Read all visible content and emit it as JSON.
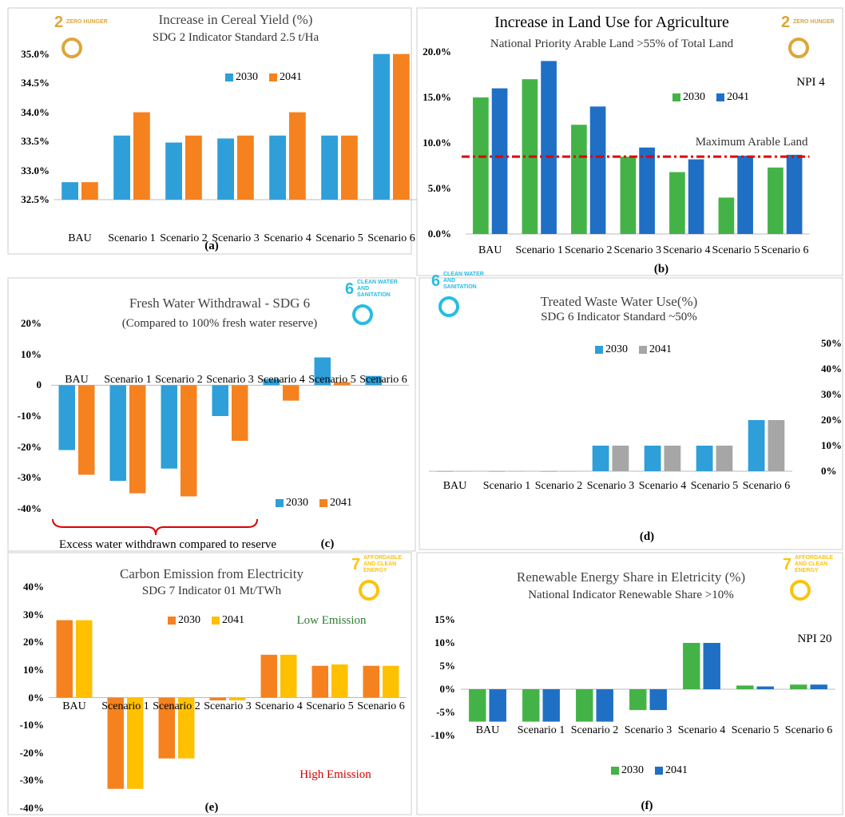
{
  "chart_data": [
    {
      "type": "bar",
      "title": "Increase in Cereal Yield (%)",
      "subtitle": "SDG 2 Indicator Standard 2.5 t/Ha",
      "panel_label": "(a)",
      "badge": {
        "number": "2",
        "text": "ZERO HUNGER",
        "color": "#dda63a"
      },
      "categories": [
        "BAU",
        "Scenario 1",
        "Scenario 2",
        "Scenario 3",
        "Scenario 4",
        "Scenario 5",
        "Scenario 6"
      ],
      "series": [
        {
          "name": "2030",
          "color": "#2e9fd8",
          "values": [
            32.8,
            33.6,
            33.48,
            33.55,
            33.6,
            33.6,
            35.0
          ]
        },
        {
          "name": "2041",
          "color": "#f5821f",
          "values": [
            32.8,
            34.0,
            33.6,
            33.6,
            34.0,
            33.6,
            35.0
          ]
        }
      ],
      "ylim": [
        32.5,
        35.2
      ],
      "yticks": [
        {
          "value": 32.5,
          "label": "32.5%"
        },
        {
          "value": 33,
          "label": "33.0%"
        },
        {
          "value": 33.5,
          "label": "33.5%"
        },
        {
          "value": 34,
          "label": "34.0%"
        },
        {
          "value": 34.5,
          "label": "34.5%"
        },
        {
          "value": 35,
          "label": "35.0%"
        }
      ]
    },
    {
      "type": "bar",
      "title": "Increase in Land Use for Agriculture",
      "subtitle": "National Priority Arable Land >55% of Total Land",
      "panel_label": "(b)",
      "badge": {
        "number": "2",
        "text": "ZERO HUNGER",
        "color": "#dda63a"
      },
      "annotations": [
        {
          "text": "NPI 4",
          "color": "#000"
        }
      ],
      "categories": [
        "BAU",
        "Scenario 1",
        "Scenario 2",
        "Scenario 3",
        "Scenario 4",
        "Scenario 5",
        "Scenario 6"
      ],
      "series": [
        {
          "name": "2030",
          "color": "#44b347",
          "values": [
            15,
            17,
            12,
            8.5,
            6.8,
            4.0,
            7.3
          ]
        },
        {
          "name": "2041",
          "color": "#1f6fc5",
          "values": [
            16,
            19,
            14,
            9.5,
            8.2,
            8.6,
            8.7
          ]
        }
      ],
      "ref_line": {
        "value": 8.5,
        "label": "Maximum Arable Land",
        "color": "#e00000"
      },
      "ylim": [
        0,
        20
      ],
      "yticks": [
        {
          "value": 0,
          "label": "0.0%"
        },
        {
          "value": 5,
          "label": "5.0%"
        },
        {
          "value": 10,
          "label": "10.0%"
        },
        {
          "value": 15,
          "label": "15.0%"
        },
        {
          "value": 20,
          "label": "20.0%"
        }
      ]
    },
    {
      "type": "bar",
      "title": "Fresh Water Withdrawal - SDG 6",
      "subtitle": "(Compared to 100% fresh water reserve)",
      "panel_label": "(c)",
      "badge": {
        "number": "6",
        "text": "CLEAN WATER AND SANITATION",
        "color": "#26bde2"
      },
      "annotations": [
        {
          "text": "Excess water withdrawn compared to reserve",
          "color": "#000"
        }
      ],
      "categories": [
        "BAU",
        "Scenario 1",
        "Scenario 2",
        "Scenario 3",
        "Scenario 4",
        "Scenario 5",
        "Scenario 6"
      ],
      "series": [
        {
          "name": "2030",
          "color": "#2e9fd8",
          "values": [
            -21,
            -31,
            -27,
            -10,
            2,
            9,
            3
          ]
        },
        {
          "name": "2041",
          "color": "#f5821f",
          "values": [
            -29,
            -35,
            -36,
            -18,
            -5,
            1,
            null
          ]
        }
      ],
      "ylim": [
        -40,
        20
      ],
      "yticks": [
        {
          "value": -40,
          "label": "-40%"
        },
        {
          "value": -30,
          "label": "-30%"
        },
        {
          "value": -20,
          "label": "-20%"
        },
        {
          "value": -10,
          "label": "-10%"
        },
        0,
        {
          "value": 10,
          "label": "10%"
        },
        {
          "value": 20,
          "label": "20%"
        }
      ]
    },
    {
      "type": "bar",
      "title": "Treated Waste Water Use(%)",
      "subtitle": "SDG 6 Indicator Standard ~50%",
      "panel_label": "(d)",
      "badge": {
        "number": "6",
        "text": "CLEAN WATER AND SANITATION",
        "color": "#26bde2"
      },
      "categories": [
        "BAU",
        "Scenario 1",
        "Scenario 2",
        "Scenario 3",
        "Scenario 4",
        "Scenario 5",
        "Scenario 6"
      ],
      "series": [
        {
          "name": "2030",
          "color": "#2e9fd8",
          "values": [
            0,
            0,
            0,
            10,
            10,
            10,
            20
          ]
        },
        {
          "name": "2041",
          "color": "#a6a6a6",
          "values": [
            0,
            0,
            0,
            10,
            10,
            10,
            20
          ]
        }
      ],
      "ylim": [
        0,
        50
      ],
      "yticks": [
        {
          "value": 0,
          "label": "0%"
        },
        {
          "value": 10,
          "label": "10%"
        },
        {
          "value": 20,
          "label": "20%"
        },
        {
          "value": 30,
          "label": "30%"
        },
        {
          "value": 40,
          "label": "40%"
        },
        {
          "value": 50,
          "label": "50%"
        }
      ]
    },
    {
      "type": "bar",
      "title": "Carbon Emission from Electricity",
      "subtitle": "SDG 7 Indicator 01 Mt/TWh",
      "panel_label": "(e)",
      "badge": {
        "number": "7",
        "text": "AFFORDABLE AND CLEAN ENERGY",
        "color": "#fcc30b"
      },
      "annotations": [
        {
          "text": "Low Emission",
          "color": "#2e7d32"
        },
        {
          "text": "High Emission",
          "color": "#d50000"
        }
      ],
      "categories": [
        "BAU",
        "Scenario 1",
        "Scenario 2",
        "Scenario 3",
        "Scenario 4",
        "Scenario 5",
        "Scenario 6"
      ],
      "series": [
        {
          "name": "2030",
          "color": "#f5821f",
          "values": [
            28,
            -33,
            -22,
            -1,
            15.5,
            11.5,
            11.5
          ]
        },
        {
          "name": "2041",
          "color": "#ffc000",
          "values": [
            28,
            -33,
            -22,
            -1,
            15.5,
            12,
            11.5
          ]
        }
      ],
      "ylim": [
        -40,
        40
      ],
      "yticks": [
        {
          "value": -40,
          "label": "-40%"
        },
        {
          "value": -30,
          "label": "-30%"
        },
        {
          "value": -20,
          "label": "-20%"
        },
        {
          "value": -10,
          "label": "-10%"
        },
        {
          "value": 0,
          "label": "0%"
        },
        {
          "value": 10,
          "label": "10%"
        },
        {
          "value": 20,
          "label": "20%"
        },
        {
          "value": 30,
          "label": "30%"
        },
        {
          "value": 40,
          "label": "40%"
        }
      ]
    },
    {
      "type": "bar",
      "title": "Renewable Energy Share in Eletricity (%)",
      "subtitle": "National Indicator Renewable Share >10%",
      "panel_label": "(f)",
      "badge": {
        "number": "7",
        "text": "AFFORDABLE AND CLEAN ENERGY",
        "color": "#fcc30b"
      },
      "annotations": [
        {
          "text": "NPI 20",
          "color": "#000"
        }
      ],
      "categories": [
        "BAU",
        "Scenario 1",
        "Scenario 2",
        "Scenario 3",
        "Scenario 4",
        "Scenario 5",
        "Scenario 6"
      ],
      "series": [
        {
          "name": "2030",
          "color": "#44b347",
          "values": [
            -7,
            -7,
            -7,
            -4.5,
            10,
            0.8,
            1.0
          ]
        },
        {
          "name": "2041",
          "color": "#1f6fc5",
          "values": [
            -7,
            -7,
            -7,
            -4.5,
            10,
            0.6,
            1.0
          ]
        }
      ],
      "ylim": [
        -10,
        15
      ],
      "yticks": [
        {
          "value": -10,
          "label": "-10%"
        },
        {
          "value": -5,
          "label": "-5%"
        },
        {
          "value": 0,
          "label": "0%"
        },
        {
          "value": 5,
          "label": "5%"
        },
        {
          "value": 10,
          "label": "10%"
        },
        {
          "value": 15,
          "label": "15%"
        }
      ]
    }
  ]
}
